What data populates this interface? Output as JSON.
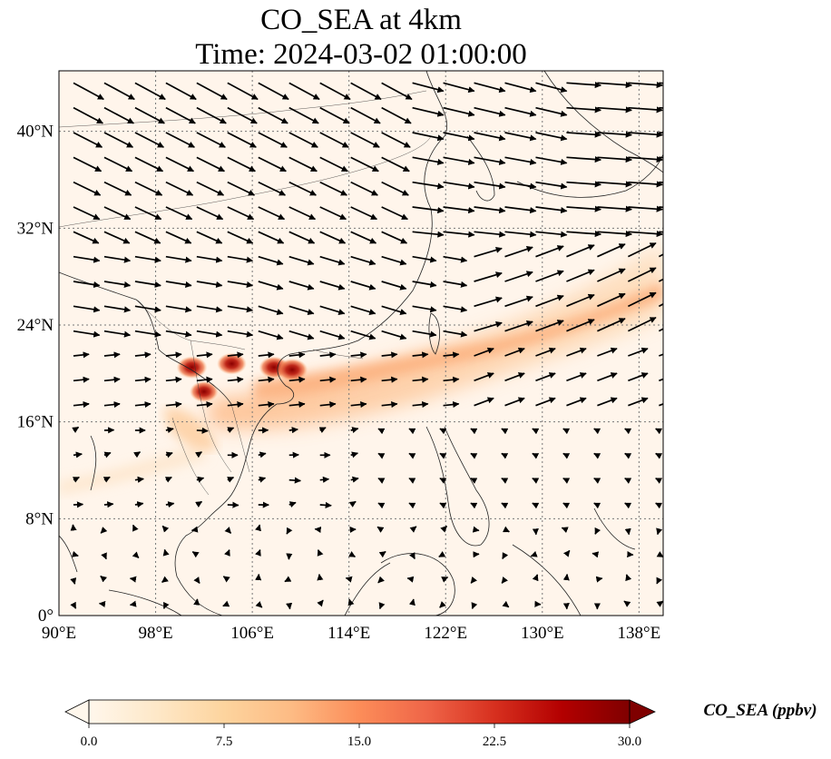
{
  "title": {
    "line1": "CO_SEA at 4km",
    "line2": "Time: 2024-03-02 01:00:00"
  },
  "map": {
    "lon_range": [
      90,
      140
    ],
    "lat_range": [
      0,
      45
    ],
    "lon_ticks": [
      {
        "value": 90,
        "label": "90°E"
      },
      {
        "value": 98,
        "label": "98°E"
      },
      {
        "value": 106,
        "label": "106°E"
      },
      {
        "value": 114,
        "label": "114°E"
      },
      {
        "value": 122,
        "label": "122°E"
      },
      {
        "value": 130,
        "label": "130°E"
      },
      {
        "value": 138,
        "label": "138°E"
      }
    ],
    "lat_ticks": [
      {
        "value": 0,
        "label": "0°"
      },
      {
        "value": 8,
        "label": "8°N"
      },
      {
        "value": 16,
        "label": "16°N"
      },
      {
        "value": 24,
        "label": "24°N"
      },
      {
        "value": 32,
        "label": "32°N"
      },
      {
        "value": 40,
        "label": "40°N"
      }
    ],
    "gridlines": true,
    "background_color": "#fff5eb",
    "plume_regions": [
      {
        "name": "main-plume-hotspot-1",
        "lon": 101.0,
        "lat": 20.5,
        "value": 26
      },
      {
        "name": "main-plume-hotspot-2",
        "lon": 104.3,
        "lat": 20.8,
        "value": 24
      },
      {
        "name": "main-plume-hotspot-3",
        "lon": 102.0,
        "lat": 18.5,
        "value": 22
      },
      {
        "name": "main-plume-hotspot-4",
        "lon": 107.8,
        "lat": 20.5,
        "value": 25
      },
      {
        "name": "main-plume-hotspot-5",
        "lon": 109.3,
        "lat": 20.3,
        "value": 27
      }
    ]
  },
  "colorbar": {
    "min": 0.0,
    "max": 30.0,
    "extend": "both",
    "colormap": "OrRd",
    "ticks": [
      "0.0",
      "7.5",
      "15.0",
      "22.5",
      "30.0"
    ],
    "label": "CO_SEA (ppbv)",
    "stops": [
      "#fff7ec",
      "#fee8c8",
      "#fdd49e",
      "#fdbb84",
      "#fc8d59",
      "#ef6548",
      "#d7301f",
      "#b30000",
      "#7f0000"
    ]
  }
}
